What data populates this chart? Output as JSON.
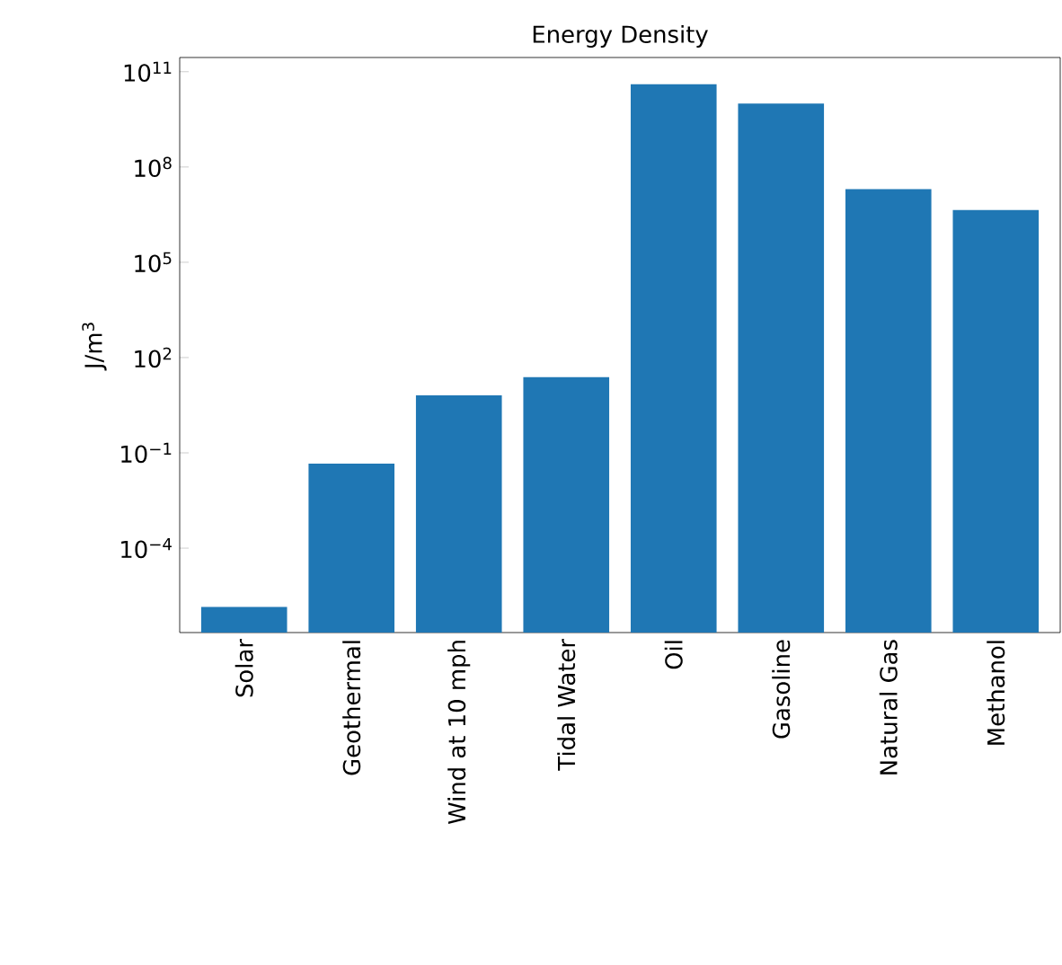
{
  "chart_data": {
    "type": "bar",
    "title": "Energy Density",
    "ylabel": "J/m$^{3}$",
    "categories": [
      "Solar",
      "Geothermal",
      "Wind at 10 mph",
      "Tidal Water",
      "Oil",
      "Gasoline",
      "Natural Gas",
      "Methanol"
    ],
    "values": [
      1.4e-06,
      0.046,
      6.5,
      24,
      40000000000.0,
      10000000000.0,
      20000000.0,
      4400000.0
    ],
    "color": "#1f77b4",
    "log": "y",
    "ylim": [
      2.2e-07,
      280000000000.0
    ],
    "yticks": [
      {
        "value": 0.0001,
        "label": "10$^{−4}$"
      },
      {
        "value": 0.1,
        "label": "10$^{−1}$"
      },
      {
        "value": 100,
        "label": "10$^{2}$"
      },
      {
        "value": 100000.0,
        "label": "10$^{5}$"
      },
      {
        "value": 100000000.0,
        "label": "10$^{8}$"
      },
      {
        "value": 100000000000.0,
        "label": "10$^{11}$"
      }
    ]
  }
}
